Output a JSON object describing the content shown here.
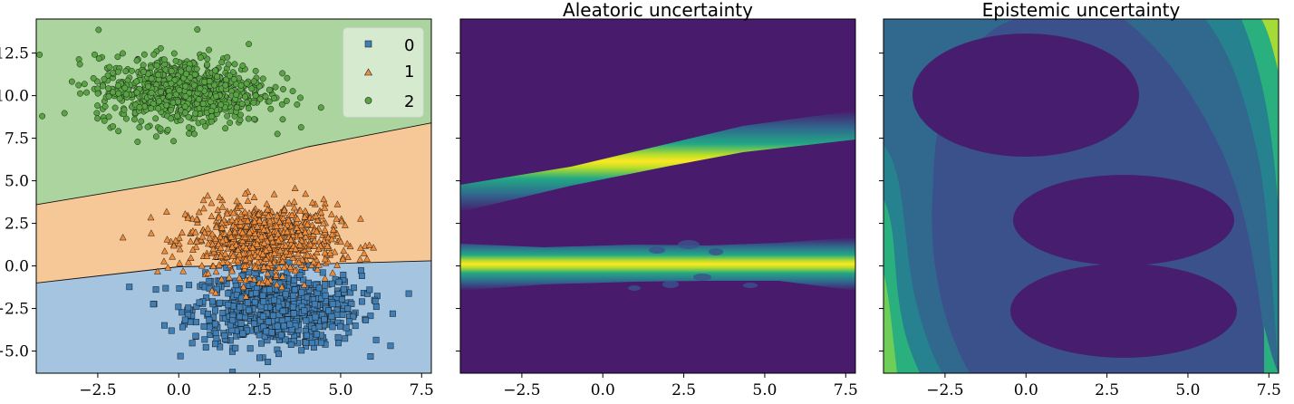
{
  "chart_data": [
    {
      "type": "scatter",
      "title": "",
      "xlabel": "",
      "ylabel": "",
      "xlim": [
        -4.4,
        7.8
      ],
      "ylim": [
        -6.3,
        14.5
      ],
      "xticks": [
        -2.5,
        0.0,
        2.5,
        5.0,
        7.5
      ],
      "xtick_labels": [
        "−2.5",
        "0.0",
        "2.5",
        "5.0",
        "7.5"
      ],
      "yticks": [
        -5.0,
        -2.5,
        0.0,
        2.5,
        5.0,
        7.5,
        10.0,
        12.5
      ],
      "ytick_labels": [
        "−5.0",
        "−2.5",
        "0.0",
        "2.5",
        "5.0",
        "7.5",
        "10.0",
        "12.5"
      ],
      "grid": false,
      "legend": "top-right",
      "series": [
        {
          "name": "0",
          "marker": "square",
          "color": "#3f7fb5",
          "center": [
            3.0,
            -2.5
          ],
          "spread": [
            1.3,
            1.1
          ]
        },
        {
          "name": "1",
          "marker": "triangle",
          "color": "#ef8c3a",
          "center": [
            2.6,
            1.5
          ],
          "spread": [
            1.15,
            1.05
          ]
        },
        {
          "name": "2",
          "marker": "circle",
          "color": "#58a442",
          "center": [
            0.1,
            10.3
          ],
          "spread": [
            1.3,
            1.0
          ]
        }
      ],
      "decision_boundaries": [
        {
          "between": [
            "0",
            "1"
          ],
          "points": [
            [
              -4.4,
              -1.0
            ],
            [
              0.0,
              -0.05
            ],
            [
              4.0,
              0.1
            ],
            [
              7.8,
              0.3
            ]
          ]
        },
        {
          "between": [
            "1",
            "2"
          ],
          "points": [
            [
              -4.4,
              3.6
            ],
            [
              0.0,
              5.0
            ],
            [
              4.0,
              7.0
            ],
            [
              7.8,
              8.4
            ]
          ]
        }
      ],
      "region_colors": {
        "0": "#a5c4e0",
        "1": "#f6c897",
        "2": "#acd49f"
      }
    },
    {
      "type": "heatmap",
      "title": "Aleatoric uncertainty",
      "xlabel": "",
      "ylabel": "",
      "xlim": [
        -4.4,
        7.8
      ],
      "ylim": [
        -6.3,
        14.5
      ],
      "xticks": [
        -2.5,
        0.0,
        2.5,
        5.0,
        7.5
      ],
      "xtick_labels": [
        "−2.5",
        "0.0",
        "2.5",
        "5.0",
        "7.5"
      ],
      "colormap": "viridis"
    },
    {
      "type": "heatmap",
      "title": "Epistemic uncertainty",
      "xlabel": "",
      "ylabel": "",
      "xlim": [
        -4.4,
        7.8
      ],
      "ylim": [
        -6.3,
        14.5
      ],
      "xticks": [
        -2.5,
        0.0,
        2.5,
        5.0,
        7.5
      ],
      "xtick_labels": [
        "−2.5",
        "0.0",
        "2.5",
        "5.0",
        "7.5"
      ],
      "colormap": "viridis"
    }
  ]
}
